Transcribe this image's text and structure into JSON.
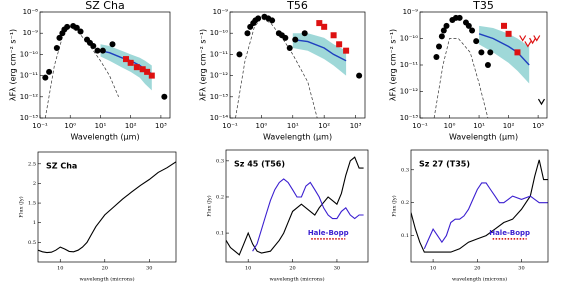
{
  "chart_data": [
    {
      "type": "sed",
      "title": "SZ Cha",
      "ylabel": "λFλ (erg cm⁻² s⁻¹)",
      "xlabel": "Wavelength (μm)",
      "xlog": true,
      "ylog": true,
      "xlim": [
        0.1,
        2000
      ],
      "ylim": [
        1e-13,
        1e-08
      ],
      "xticks": [
        {
          "value": 0.1,
          "label": "10⁻¹"
        },
        {
          "value": 1,
          "label": "10⁰"
        },
        {
          "value": 10,
          "label": "10¹"
        },
        {
          "value": 100,
          "label": "10²"
        },
        {
          "value": 1000,
          "label": "10³"
        }
      ],
      "yticks": [
        {
          "value": 1e-13,
          "label": "10⁻¹³"
        },
        {
          "value": 1e-12,
          "label": "10⁻¹²"
        },
        {
          "value": 1e-11,
          "label": "10⁻¹¹"
        },
        {
          "value": 1e-10,
          "label": "10⁻¹⁰"
        },
        {
          "value": 1e-09,
          "label": "10⁻⁹"
        },
        {
          "value": 1e-08,
          "label": "10⁻⁸"
        }
      ],
      "series": [
        {
          "style": "band",
          "color": "#9fd8d8",
          "x": [
            10,
            20,
            50,
            100,
            200,
            300,
            500
          ],
          "values": [
            8e-11,
            5e-11,
            2.5e-11,
            1.5e-11,
            8e-12,
            4e-12,
            2e-12
          ],
          "upper": [
            3e-10,
            2.5e-10,
            1.5e-10,
            1e-10,
            7e-11,
            5e-11,
            3e-11
          ]
        },
        {
          "style": "dashed",
          "color": "#333333",
          "x": [
            0.15,
            0.3,
            0.6,
            1,
            2,
            5,
            10,
            20,
            40
          ],
          "values": [
            1e-13,
            3e-11,
            1e-09,
            2e-09,
            1e-09,
            2e-10,
            5e-11,
            1e-11,
            1e-12
          ]
        },
        {
          "style": "line",
          "color": "#1f3fbf",
          "x": [
            10,
            20,
            50,
            100,
            200,
            300,
            500
          ],
          "values": [
            1.5e-10,
            1.2e-10,
            7e-11,
            5e-11,
            3e-11,
            2e-11,
            1.2e-11
          ]
        },
        {
          "style": "points",
          "color": "#000000",
          "x": [
            0.15,
            0.2,
            0.36,
            0.44,
            0.55,
            0.64,
            0.79,
            1.25,
            1.65,
            2.2,
            3.6,
            4.5,
            5.8,
            8,
            12,
            25,
            1300
          ],
          "values": [
            8e-12,
            1.5e-11,
            2e-10,
            6e-10,
            1e-09,
            1.5e-09,
            2e-09,
            2.2e-09,
            1.8e-09,
            1.2e-09,
            5e-10,
            3.5e-10,
            2.5e-10,
            1.5e-10,
            1.5e-10,
            3e-10,
            1e-12
          ]
        },
        {
          "style": "squares",
          "color": "#dd1111",
          "x": [
            70,
            100,
            160,
            250,
            350,
            500
          ],
          "values": [
            6e-11,
            4e-11,
            2.5e-11,
            2e-11,
            1.5e-11,
            1e-11
          ]
        }
      ]
    },
    {
      "type": "sed",
      "title": "T56",
      "ylabel": "λFλ (erg cm⁻² s⁻¹)",
      "xlabel": "Wavelength (μm)",
      "xlog": true,
      "ylog": true,
      "xlim": [
        0.1,
        2000
      ],
      "ylim": [
        1e-14,
        1e-09
      ],
      "xticks": [
        {
          "value": 0.1,
          "label": "10⁻¹"
        },
        {
          "value": 1,
          "label": "10⁰"
        },
        {
          "value": 10,
          "label": "10¹"
        },
        {
          "value": 100,
          "label": "10²"
        },
        {
          "value": 1000,
          "label": "10³"
        }
      ],
      "yticks": [
        {
          "value": 1e-14,
          "label": "10⁻¹⁴"
        },
        {
          "value": 1e-13,
          "label": "10⁻¹³"
        },
        {
          "value": 1e-12,
          "label": "10⁻¹²"
        },
        {
          "value": 1e-11,
          "label": "10⁻¹¹"
        },
        {
          "value": 1e-10,
          "label": "10⁻¹⁰"
        },
        {
          "value": 1e-09,
          "label": "10⁻⁹"
        }
      ],
      "series": [
        {
          "style": "band",
          "color": "#9fd8d8",
          "x": [
            10,
            30,
            100,
            200,
            500
          ],
          "values": [
            2e-11,
            1.5e-11,
            6e-12,
            3e-12,
            1e-12
          ],
          "upper": [
            1e-10,
            1e-10,
            6e-11,
            3e-11,
            1.5e-11
          ]
        },
        {
          "style": "dashed",
          "color": "#333333",
          "x": [
            0.15,
            0.3,
            0.6,
            1,
            2,
            5,
            10,
            30,
            60
          ],
          "values": [
            1e-14,
            5e-12,
            2e-10,
            5e-10,
            3e-10,
            5e-11,
            1e-11,
            5e-13,
            1e-14
          ]
        },
        {
          "style": "line",
          "color": "#1f3fbf",
          "x": [
            10,
            30,
            100,
            200,
            500
          ],
          "values": [
            5e-11,
            4e-11,
            2e-11,
            1e-11,
            5e-12
          ]
        },
        {
          "style": "points",
          "color": "#000000",
          "x": [
            0.2,
            0.36,
            0.44,
            0.55,
            0.64,
            0.79,
            1.25,
            1.65,
            2.2,
            3.6,
            4.5,
            5.8,
            8,
            12,
            24,
            1300
          ],
          "values": [
            1e-11,
            1e-10,
            2e-10,
            3e-10,
            4e-10,
            5e-10,
            6e-10,
            5e-10,
            4e-10,
            1e-10,
            8e-11,
            6e-11,
            2e-11,
            5e-11,
            1e-10,
            1e-12
          ]
        },
        {
          "style": "squares",
          "color": "#dd1111",
          "x": [
            70,
            100,
            200,
            300,
            500
          ],
          "values": [
            3e-10,
            2e-10,
            8e-11,
            3e-11,
            1.5e-11
          ]
        }
      ]
    },
    {
      "type": "sed",
      "title": "T35",
      "ylabel": "λFλ (erg cm⁻² s⁻¹)",
      "xlabel": "Wavelength (μm)",
      "xlog": true,
      "ylog": true,
      "xlim": [
        0.1,
        2000
      ],
      "ylim": [
        1e-13,
        1e-09
      ],
      "xticks": [
        {
          "value": 0.1,
          "label": "10⁻¹"
        },
        {
          "value": 1,
          "label": "10⁰"
        },
        {
          "value": 10,
          "label": "10¹"
        },
        {
          "value": 100,
          "label": "10²"
        },
        {
          "value": 1000,
          "label": "10³"
        }
      ],
      "yticks": [
        {
          "value": 1e-13,
          "label": "10⁻¹³"
        },
        {
          "value": 1e-12,
          "label": "10⁻¹²"
        },
        {
          "value": 1e-11,
          "label": "10⁻¹¹"
        },
        {
          "value": 1e-10,
          "label": "10⁻¹⁰"
        },
        {
          "value": 1e-09,
          "label": "10⁻⁹"
        }
      ],
      "series": [
        {
          "style": "band",
          "color": "#9fd8d8",
          "x": [
            10,
            30,
            100,
            200,
            500
          ],
          "values": [
            6e-11,
            3e-11,
            1.2e-11,
            6e-12,
            2e-12
          ],
          "upper": [
            3e-10,
            2.5e-10,
            1.5e-10,
            1e-10,
            5e-11
          ]
        },
        {
          "style": "dashed",
          "color": "#333333",
          "x": [
            0.3,
            0.6,
            1,
            2,
            5,
            10,
            20
          ],
          "values": [
            1e-13,
            1e-11,
            1e-10,
            1e-10,
            3e-11,
            2e-12,
            1e-13
          ]
        },
        {
          "style": "line",
          "color": "#1f3fbf",
          "x": [
            10,
            30,
            100,
            200,
            500
          ],
          "values": [
            1.5e-10,
            1e-10,
            5e-11,
            3e-11,
            1e-11
          ]
        },
        {
          "style": "points",
          "color": "#000000",
          "x": [
            0.36,
            0.44,
            0.55,
            0.64,
            0.79,
            1.25,
            1.65,
            2.2,
            3.6,
            4.5,
            5.8,
            8,
            12,
            20,
            24
          ],
          "values": [
            2e-11,
            5e-11,
            1.2e-10,
            2e-10,
            3e-10,
            5e-10,
            6e-10,
            6e-10,
            4e-10,
            3e-10,
            2e-10,
            8e-11,
            3e-11,
            1e-11,
            3e-11
          ]
        },
        {
          "style": "squares",
          "color": "#dd1111",
          "x": [
            70,
            100,
            200
          ],
          "values": [
            3e-10,
            1.5e-10,
            3e-11
          ]
        },
        {
          "style": "vee",
          "color": "#dd1111",
          "x": [
            300,
            450,
            650,
            900
          ],
          "values": [
            1e-10,
            6e-11,
            8e-11,
            1e-10
          ]
        },
        {
          "style": "vee",
          "color": "#000000",
          "x": [
            1300
          ],
          "values": [
            4e-13
          ]
        }
      ]
    },
    {
      "type": "line",
      "title": "SZ Cha",
      "ylabel": "Flux (Jy)",
      "xlabel": "wavelength (microns)",
      "xlim": [
        5,
        36
      ],
      "ylim": [
        0,
        2.8
      ],
      "xticks": [
        10,
        20,
        30
      ],
      "yticks": [
        0.5,
        1,
        1.5,
        2,
        2.5
      ],
      "series": [
        {
          "color": "#000000",
          "x": [
            5,
            6,
            7,
            8,
            9,
            10,
            11,
            12,
            13,
            14,
            15,
            16,
            17,
            18,
            19,
            20,
            22,
            24,
            26,
            28,
            30,
            32,
            34,
            36
          ],
          "values": [
            0.3,
            0.26,
            0.24,
            0.25,
            0.3,
            0.38,
            0.33,
            0.27,
            0.26,
            0.3,
            0.38,
            0.5,
            0.7,
            0.9,
            1.05,
            1.2,
            1.4,
            1.6,
            1.78,
            1.95,
            2.1,
            2.28,
            2.4,
            2.55
          ]
        }
      ]
    },
    {
      "type": "line",
      "title": "Sz 45 (T56)",
      "ylabel": "Flux (Jy)",
      "xlabel": "wavelength (microns)",
      "annotation": "Hale-Bopp",
      "annotation_color": "#3b1fd0",
      "xlim": [
        5,
        37
      ],
      "ylim": [
        0.02,
        0.33
      ],
      "xticks": [
        10,
        20,
        30
      ],
      "yticks": [
        0.1,
        0.2,
        0.3
      ],
      "series": [
        {
          "color": "#000000",
          "x": [
            5,
            6,
            7,
            8,
            9,
            10,
            11,
            12,
            13,
            15,
            17,
            18,
            19,
            20,
            22,
            24,
            25,
            26,
            28,
            29,
            30,
            31,
            32,
            33,
            34,
            35,
            36
          ],
          "values": [
            0.08,
            0.06,
            0.05,
            0.04,
            0.07,
            0.1,
            0.07,
            0.05,
            0.045,
            0.05,
            0.08,
            0.1,
            0.13,
            0.16,
            0.18,
            0.16,
            0.15,
            0.17,
            0.2,
            0.19,
            0.18,
            0.21,
            0.26,
            0.3,
            0.31,
            0.28,
            0.28
          ]
        },
        {
          "color": "#3b1fd0",
          "x": [
            11,
            12,
            13,
            14,
            15,
            16,
            17,
            18,
            19,
            20,
            21,
            22,
            23,
            24,
            25,
            26,
            27,
            28,
            29,
            30,
            31,
            32,
            33,
            34,
            35,
            36
          ],
          "values": [
            0.05,
            0.07,
            0.11,
            0.15,
            0.19,
            0.22,
            0.24,
            0.25,
            0.24,
            0.22,
            0.2,
            0.2,
            0.23,
            0.24,
            0.22,
            0.2,
            0.17,
            0.15,
            0.14,
            0.14,
            0.16,
            0.17,
            0.15,
            0.14,
            0.15,
            0.15
          ]
        }
      ]
    },
    {
      "type": "line",
      "title": "Sz 27 (T35)",
      "ylabel": "Flux (Jy)",
      "xlabel": "wavelength (microns)",
      "annotation": "Hale-Bopp",
      "annotation_color": "#3b1fd0",
      "xlim": [
        5,
        36
      ],
      "ylim": [
        0.02,
        0.36
      ],
      "xticks": [
        10,
        20,
        30
      ],
      "yticks": [
        0.1,
        0.2,
        0.3
      ],
      "series": [
        {
          "color": "#000000",
          "x": [
            5,
            6,
            7,
            8,
            9,
            10,
            12,
            14,
            16,
            18,
            20,
            22,
            24,
            26,
            28,
            30,
            31,
            32,
            33,
            34,
            35,
            36
          ],
          "values": [
            0.17,
            0.12,
            0.08,
            0.05,
            0.05,
            0.05,
            0.05,
            0.05,
            0.06,
            0.08,
            0.09,
            0.1,
            0.12,
            0.14,
            0.15,
            0.18,
            0.2,
            0.22,
            0.28,
            0.33,
            0.27,
            0.27
          ]
        },
        {
          "color": "#3b1fd0",
          "x": [
            8,
            9,
            10,
            11,
            12,
            13,
            14,
            15,
            16,
            17,
            18,
            19,
            20,
            21,
            22,
            23,
            24,
            25,
            26,
            27,
            28,
            30,
            32,
            34,
            36
          ],
          "values": [
            0.06,
            0.09,
            0.12,
            0.1,
            0.08,
            0.1,
            0.14,
            0.15,
            0.15,
            0.16,
            0.18,
            0.21,
            0.24,
            0.26,
            0.26,
            0.24,
            0.22,
            0.2,
            0.2,
            0.21,
            0.22,
            0.21,
            0.22,
            0.2,
            0.2
          ]
        }
      ]
    }
  ]
}
